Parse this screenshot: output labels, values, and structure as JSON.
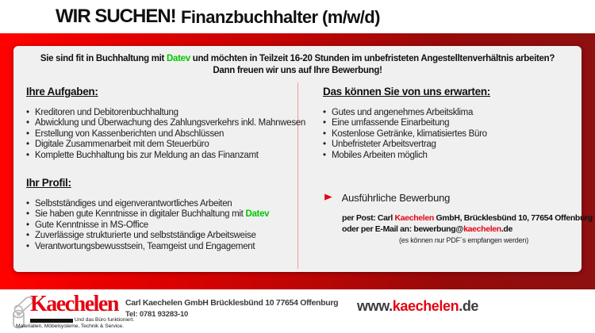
{
  "colors": {
    "band_red_left": "#ff0200",
    "band_red_right": "#8e1010",
    "brand_red": "#e30613",
    "highlight_green": "#00c800",
    "card_bg": "#f0f0f0"
  },
  "header": {
    "we_search": "WIR SUCHEN!",
    "position": "Finanzbuchhalter (m/w/d)"
  },
  "intro": {
    "line1": "Sie sind fit in Buchhaltung mit [[Datev]] und möchten in Teilzeit 16-20 Stunden im unbefristeten Angestelltenverhältnis arbeiten?",
    "line2": "Dann freuen wir uns auf Ihre Bewerbung!"
  },
  "tasks": {
    "heading": "Ihre Aufgaben:",
    "items": [
      "Kreditoren und Debitorenbuchhaltung",
      "Abwicklung und Überwachung des Zahlungsverkehrs inkl. Mahnwesen",
      "Erstellung von Kassenberichten und Abschlüssen",
      "Digitale Zusammenarbeit mit dem Steuerbüro",
      "Komplette Buchhaltung bis zur Meldung an das Finanzamt"
    ]
  },
  "profile": {
    "heading": "Ihr Profil:",
    "items": [
      "Selbstständiges und eigenverantwortliches Arbeiten",
      "Sie haben gute Kenntnisse in digitaler Buchhaltung mit [[Datev]]",
      "Gute Kenntnisse in MS-Office",
      "Zuverlässige strukturierte und selbstständige Arbeitsweise",
      "Verantwortungsbewusstsein, Teamgeist und Engagement"
    ]
  },
  "expectations": {
    "heading": "Das können Sie von uns erwarten:",
    "items": [
      "Gutes und angenehmes Arbeitsklima",
      "Eine umfassende Einarbeitung",
      "Kostenlose Getränke, klimatisiertes Büro",
      "Unbefristeter Arbeitsvertrag",
      "Mobiles Arbeiten möglich"
    ]
  },
  "application": {
    "arrow_icon": "►",
    "label": "Ausführliche Bewerbung",
    "post_line": "per Post: Carl [[Kaechelen]] GmbH, Brücklesbünd 10, 77654 Offenburg",
    "email_line": "oder per E-Mail an: bewerbung@[[kaechelen]].de",
    "note": "(es können nur PDF´s empfangen werden)"
  },
  "footer": {
    "logo_word": "Kaechelen",
    "logo_tagline1": "Und das Büro funktioniert.",
    "logo_tagline2": "Materialien, Möbelsysteme, Technik & Service.",
    "address": "Carl Kaechelen GmbH Brücklesbünd 10 77654 Offenburg",
    "phone": "Tel: 0781 93283-10",
    "website": "www.[[kaechelen]].de"
  }
}
